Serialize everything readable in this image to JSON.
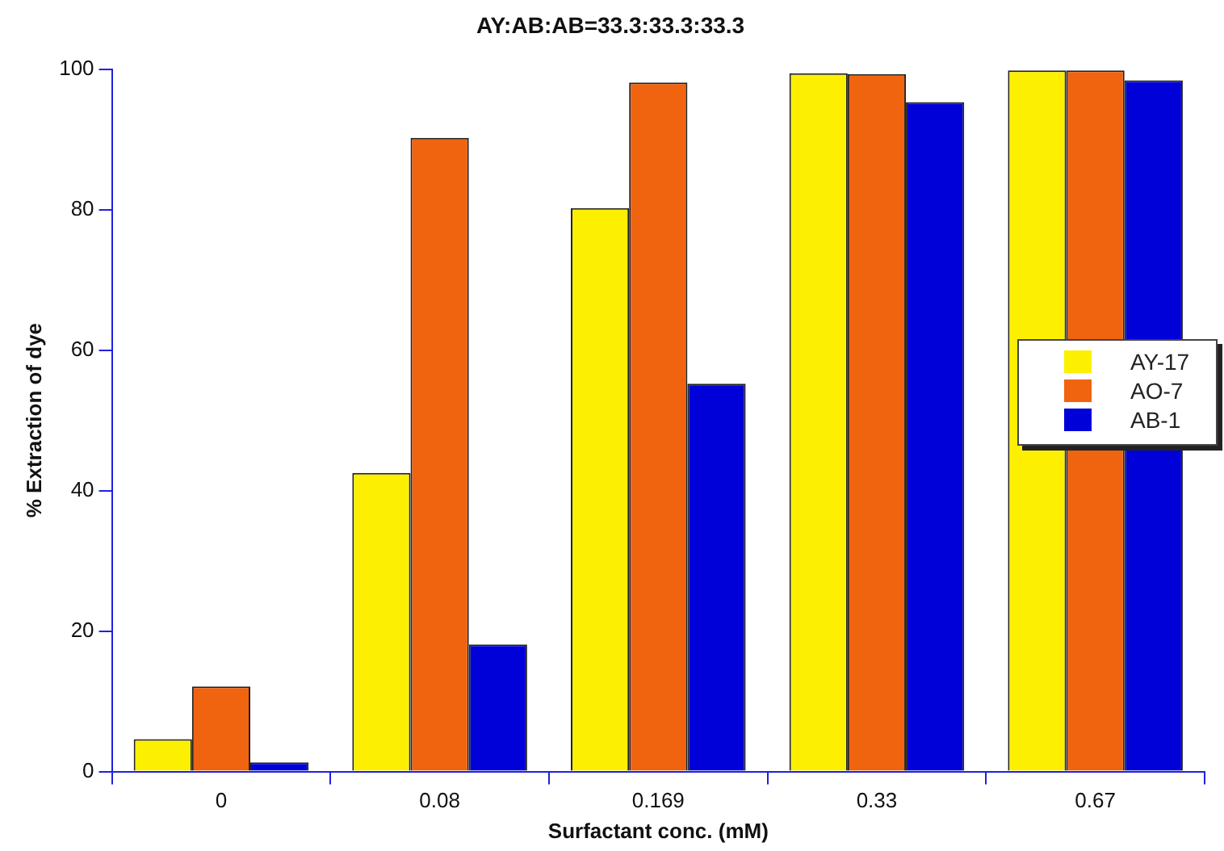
{
  "chart_data": {
    "type": "bar",
    "title": "AY:AB:AB=33.3:33.3:33.3",
    "xlabel": "Surfactant conc. (mM)",
    "ylabel": "% Extraction of dye",
    "categories": [
      "0",
      "0.08",
      "0.169",
      "0.33",
      "0.67"
    ],
    "series": [
      {
        "name": "AY-17",
        "color": "#fcf000",
        "values": [
          4.6,
          42.5,
          80.2,
          99.4,
          99.8
        ]
      },
      {
        "name": "AO-7",
        "color": "#f06410",
        "values": [
          12.1,
          90.2,
          98.1,
          99.3,
          99.8
        ]
      },
      {
        "name": "AB-1",
        "color": "#0000d8",
        "values": [
          1.3,
          18.1,
          55.2,
          95.3,
          98.4
        ]
      }
    ],
    "ylim": [
      0,
      100
    ],
    "yticks": [
      0,
      20,
      40,
      60,
      80,
      100
    ],
    "grid": false,
    "legend": "right"
  }
}
